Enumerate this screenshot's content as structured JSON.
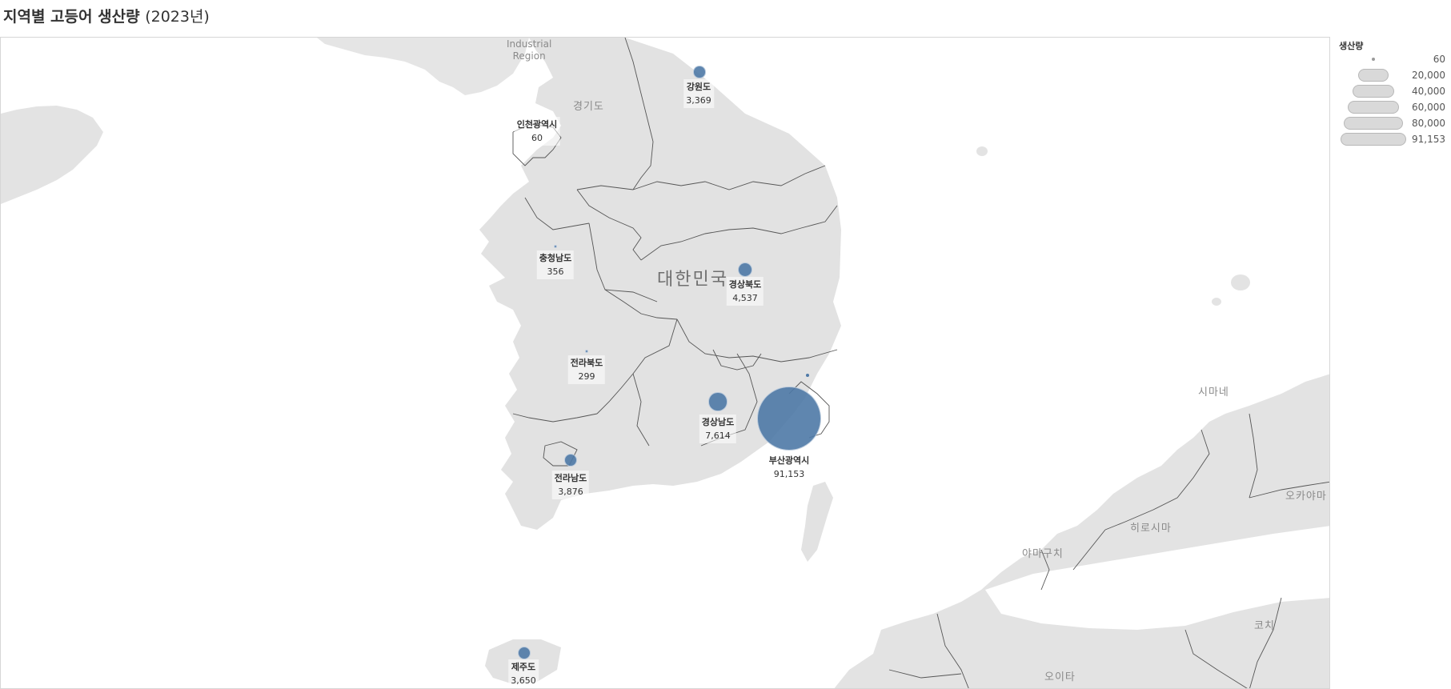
{
  "title": {
    "main": "지역별 고등어 생산량",
    "year": "(2023년)"
  },
  "legend": {
    "title": "생산량",
    "entries": [
      "60",
      "20,000",
      "40,000",
      "60,000",
      "80,000",
      "91,153"
    ]
  },
  "map_labels": {
    "country": "대한민국",
    "industrial": "Industrial",
    "region_word": "Region",
    "gyeonggi": "경기도",
    "shimane": "시마네",
    "hiroshima": "히로시마",
    "yamaguchi": "야마구치",
    "okayama": "오카야마",
    "kochi": "코치",
    "oita": "오이타"
  },
  "colors": {
    "bubble": "#4e79a7",
    "land": "#e2e2e2",
    "sea": "#ffffff",
    "border": "#555555"
  },
  "chart_data": {
    "type": "map-bubble",
    "measure": "생산량",
    "regions": [
      {
        "name": "강원도",
        "value": 3369,
        "label": "3,369"
      },
      {
        "name": "인천광역시",
        "value": 60,
        "label": "60"
      },
      {
        "name": "충청남도",
        "value": 356,
        "label": "356"
      },
      {
        "name": "경상북도",
        "value": 4537,
        "label": "4,537"
      },
      {
        "name": "전라북도",
        "value": 299,
        "label": "299"
      },
      {
        "name": "경상남도",
        "value": 7614,
        "label": "7,614"
      },
      {
        "name": "부산광역시",
        "value": 91153,
        "label": "91,153"
      },
      {
        "name": "전라남도",
        "value": 3876,
        "label": "3,876"
      },
      {
        "name": "제주도",
        "value": 3650,
        "label": "3,650"
      }
    ]
  }
}
